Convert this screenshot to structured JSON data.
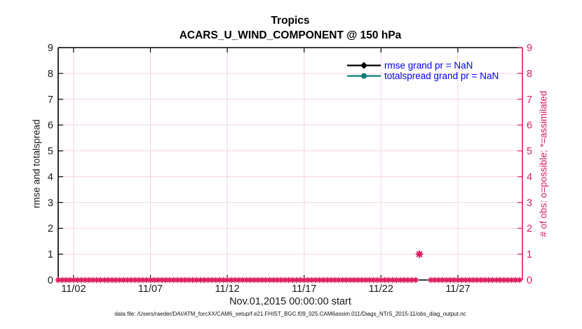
{
  "figure": {
    "title": "Tropics",
    "subtitle": "ACARS_U_WIND_COMPONENT @ 150 hPa",
    "xlabel": "Nov.01,2015 00:00:00 start",
    "ylabel_left": "rmse and totalspread",
    "ylabel_right": "# of obs: o=possible; *=assimilated",
    "footer": "data file: /Users/raeder/DAI/ATM_forcXX/CAM6_setup/f.e21.FHIST_BGC.f09_025.CAM6assim.011/Diags_NTrS_2015-11/obs_diag_output.nc"
  },
  "legend": [
    {
      "label": "rmse grand pr = NaN",
      "marker": "diamond",
      "color": "#000000"
    },
    {
      "label": "totalspread grand pr = NaN",
      "marker": "circle",
      "color": "#0c7e79"
    }
  ],
  "colors": {
    "crimson": "#de1c5d",
    "grid_pink": "#f6d3e0",
    "legend_text_blue": "#0000ff",
    "teal": "#0c7e79",
    "black": "#000000",
    "tick_label": "#1a1a1a"
  },
  "chart_data": {
    "type": "line",
    "title": "Tropics",
    "subtitle": "ACARS_U_WIND_COMPONENT @ 150 hPa",
    "xlabel": "Nov.01,2015 00:00:00 start",
    "ylabel_left": "rmse and totalspread",
    "ylabel_right": "# of obs: o=possible; *=assimilated",
    "ylim": [
      0,
      9
    ],
    "yticks": [
      0,
      1,
      2,
      3,
      4,
      5,
      6,
      7,
      8,
      9
    ],
    "xlim_days": [
      0,
      30.2
    ],
    "x_epoch": "Nov.01,2015 00:00:00",
    "xticks": [
      {
        "day": 1,
        "label": "11/02"
      },
      {
        "day": 6,
        "label": "11/07"
      },
      {
        "day": 11,
        "label": "11/12"
      },
      {
        "day": 16,
        "label": "11/17"
      },
      {
        "day": 21,
        "label": "11/22"
      },
      {
        "day": 26,
        "label": "11/27"
      }
    ],
    "grid": true,
    "legend_position": "upper right inside, no box",
    "series": [
      {
        "name": "rmse grand pr = NaN",
        "color": "#000000",
        "marker": "diamond",
        "points": []
      },
      {
        "name": "totalspread grand pr = NaN",
        "color": "#0c7e79",
        "marker": "circle",
        "points": []
      }
    ],
    "obs_counts": {
      "color": "#de1c5d",
      "note": "overlapping o (possible) and * (assimilated) markers, 6-hourly, value 0 at every time except one point of 1 near Nov 24; no markers in gap",
      "band": {
        "start_day": 0,
        "end_day": 30,
        "step_day": 0.25,
        "value": 0,
        "gap_days": [
          23.3,
          24.2
        ]
      },
      "extra_points": [
        {
          "day": 23.5,
          "value": 1
        }
      ]
    }
  }
}
